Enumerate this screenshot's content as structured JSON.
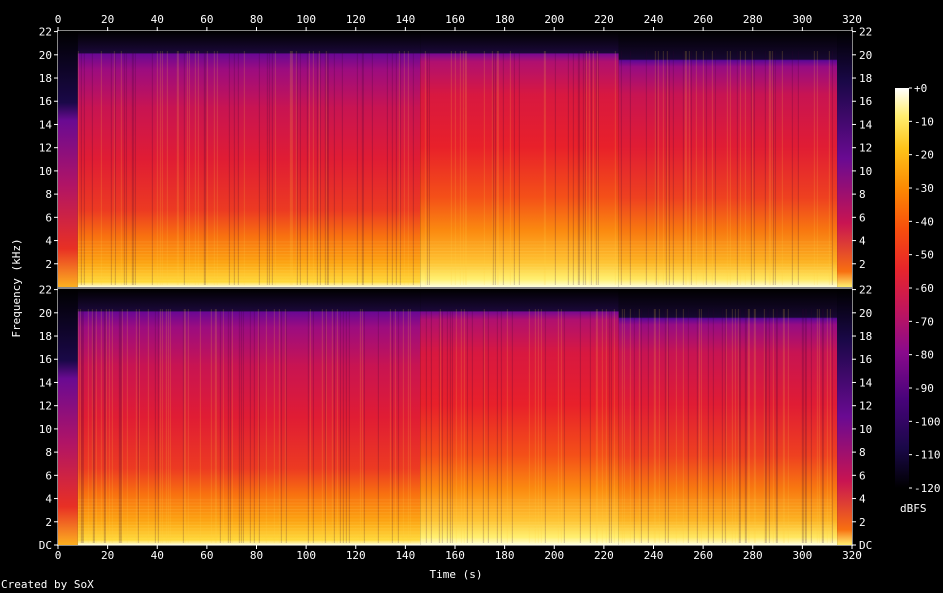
{
  "chart_data": {
    "type": "heatmap",
    "xlabel": "Time (s)",
    "ylabel": "Frequency (kHz)",
    "colorbar_label": "dBFS",
    "x_ticks": [
      "0",
      "20",
      "40",
      "60",
      "80",
      "100",
      "120",
      "140",
      "160",
      "180",
      "200",
      "220",
      "240",
      "260",
      "280",
      "300",
      "320"
    ],
    "xlim": [
      0,
      320
    ],
    "channels": [
      {
        "y_ticks": [
          "2",
          "4",
          "6",
          "8",
          "10",
          "12",
          "14",
          "16",
          "18",
          "20",
          "22"
        ],
        "ylim_khz": [
          0,
          22.05
        ]
      },
      {
        "y_ticks": [
          "DC",
          "2",
          "4",
          "6",
          "8",
          "10",
          "12",
          "14",
          "16",
          "18",
          "20",
          "22"
        ],
        "ylim_khz": [
          0,
          22.05
        ]
      }
    ],
    "colorbar": {
      "ticks": [
        "+0",
        "-10",
        "-20",
        "-30",
        "-40",
        "-50",
        "-60",
        "-70",
        "-80",
        "-90",
        "-100",
        "-110",
        "-120"
      ],
      "range_db": [
        -120,
        0
      ],
      "colors": [
        "#000000",
        "#1a0848",
        "#47037a",
        "#8a0a8c",
        "#c2165a",
        "#e8262a",
        "#f8500c",
        "#fc8a02",
        "#fec41a",
        "#ffee70",
        "#ffffff"
      ]
    },
    "segments": [
      {
        "start_s": 0,
        "end_s": 8,
        "description_level": "quiet intro, energy below ~16 kHz"
      },
      {
        "start_s": 8,
        "end_s": 146,
        "bandwidth_khz": 20
      },
      {
        "start_s": 146,
        "end_s": 226,
        "bandwidth_khz": 20
      },
      {
        "start_s": 226,
        "end_s": 314,
        "bandwidth_khz": 19.5
      },
      {
        "start_s": 314,
        "end_s": 320,
        "description_level": "fade out"
      }
    ]
  },
  "footer": {
    "credit": "Created by SoX"
  }
}
